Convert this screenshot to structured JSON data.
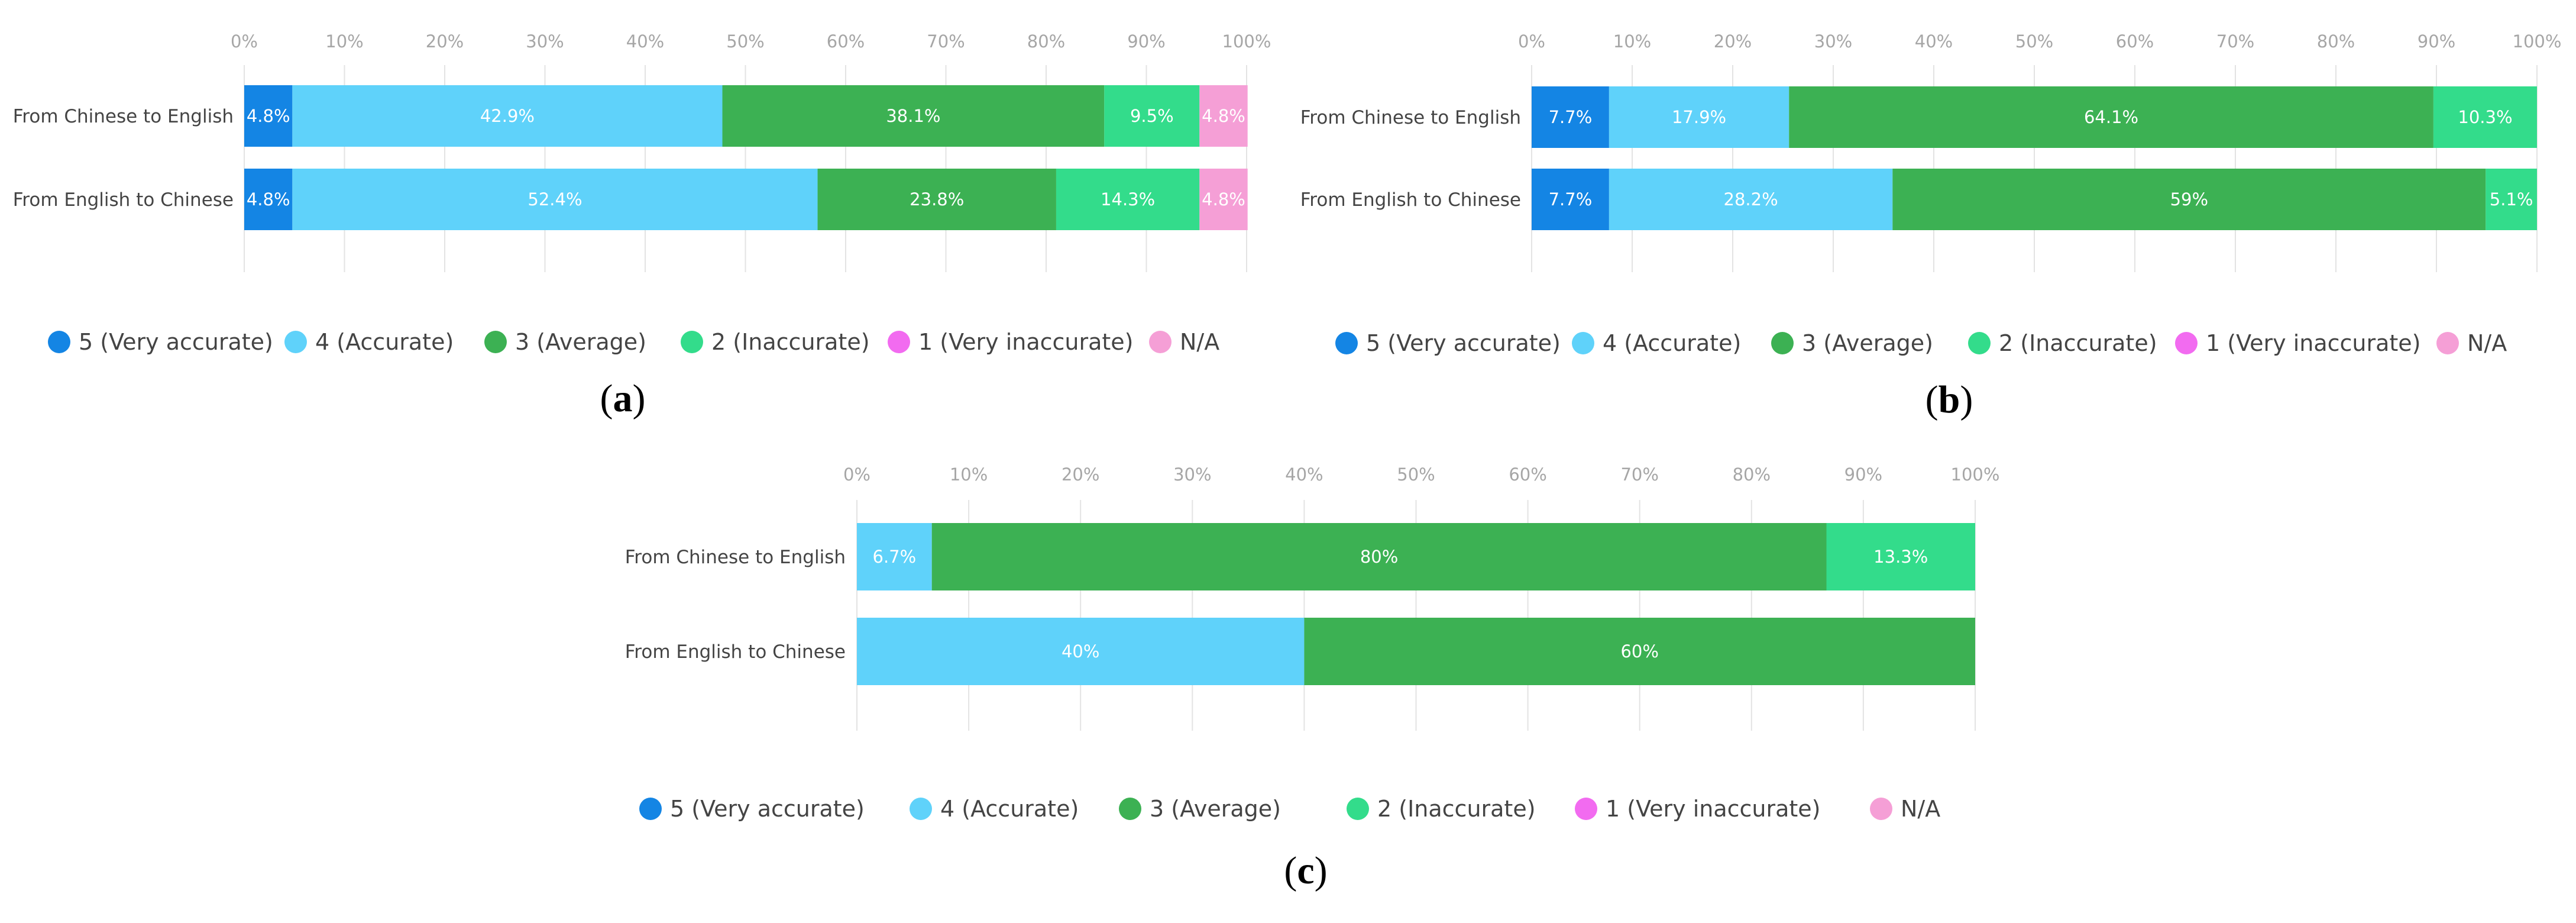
{
  "chart_data": [
    {
      "id": "a",
      "panel_label": "a",
      "type": "bar",
      "orientation": "horizontal",
      "stacked": true,
      "xlim": [
        0,
        100
      ],
      "tick_labels": [
        "0%",
        "10%",
        "20%",
        "30%",
        "40%",
        "50%",
        "60%",
        "70%",
        "80%",
        "90%",
        "100%"
      ],
      "categories": [
        "From Chinese to English",
        "From English to Chinese"
      ],
      "series": [
        {
          "name": "5 (Very accurate)",
          "values": [
            4.8,
            4.8
          ],
          "labels": [
            "4.8%",
            "4.8%"
          ]
        },
        {
          "name": "4 (Accurate)",
          "values": [
            42.9,
            52.4
          ],
          "labels": [
            "42.9%",
            "52.4%"
          ]
        },
        {
          "name": "3 (Average)",
          "values": [
            38.1,
            23.8
          ],
          "labels": [
            "38.1%",
            "23.8%"
          ]
        },
        {
          "name": "2 (Inaccurate)",
          "values": [
            9.5,
            14.3
          ],
          "labels": [
            "9.5%",
            "14.3%"
          ]
        },
        {
          "name": "1 (Very inaccurate)",
          "values": [
            0,
            0
          ],
          "labels": [
            "",
            ""
          ]
        },
        {
          "name": "N/A",
          "values": [
            4.8,
            4.8
          ],
          "labels": [
            "4.8%",
            "4.8%"
          ]
        }
      ],
      "legend_position": "bottom"
    },
    {
      "id": "b",
      "panel_label": "b",
      "type": "bar",
      "orientation": "horizontal",
      "stacked": true,
      "xlim": [
        0,
        100
      ],
      "tick_labels": [
        "0%",
        "10%",
        "20%",
        "30%",
        "40%",
        "50%",
        "60%",
        "70%",
        "80%",
        "90%",
        "100%"
      ],
      "categories": [
        "From Chinese to English",
        "From English to Chinese"
      ],
      "series": [
        {
          "name": "5 (Very accurate)",
          "values": [
            7.7,
            7.7
          ],
          "labels": [
            "7.7%",
            "7.7%"
          ]
        },
        {
          "name": "4 (Accurate)",
          "values": [
            17.9,
            28.2
          ],
          "labels": [
            "17.9%",
            "28.2%"
          ]
        },
        {
          "name": "3 (Average)",
          "values": [
            64.1,
            59
          ],
          "labels": [
            "64.1%",
            "59%"
          ]
        },
        {
          "name": "2 (Inaccurate)",
          "values": [
            10.3,
            5.1
          ],
          "labels": [
            "10.3%",
            "5.1%"
          ]
        },
        {
          "name": "1 (Very inaccurate)",
          "values": [
            0,
            0
          ],
          "labels": [
            "",
            ""
          ]
        },
        {
          "name": "N/A",
          "values": [
            0,
            0
          ],
          "labels": [
            "",
            ""
          ]
        }
      ],
      "legend_position": "bottom"
    },
    {
      "id": "c",
      "panel_label": "c",
      "type": "bar",
      "orientation": "horizontal",
      "stacked": true,
      "xlim": [
        0,
        100
      ],
      "tick_labels": [
        "0%",
        "10%",
        "20%",
        "30%",
        "40%",
        "50%",
        "60%",
        "70%",
        "80%",
        "90%",
        "100%"
      ],
      "categories": [
        "From Chinese to English",
        "From English to Chinese"
      ],
      "series": [
        {
          "name": "5 (Very accurate)",
          "values": [
            0,
            0
          ],
          "labels": [
            "",
            ""
          ]
        },
        {
          "name": "4 (Accurate)",
          "values": [
            6.7,
            40
          ],
          "labels": [
            "6.7%",
            "40%"
          ]
        },
        {
          "name": "3 (Average)",
          "values": [
            80,
            60
          ],
          "labels": [
            "80%",
            "60%"
          ]
        },
        {
          "name": "2 (Inaccurate)",
          "values": [
            13.3,
            0
          ],
          "labels": [
            "13.3%",
            ""
          ]
        },
        {
          "name": "1 (Very inaccurate)",
          "values": [
            0,
            0
          ],
          "labels": [
            "",
            ""
          ]
        },
        {
          "name": "N/A",
          "values": [
            0,
            0
          ],
          "labels": [
            "",
            ""
          ]
        }
      ],
      "legend_position": "bottom"
    }
  ],
  "colors": {
    "5 (Very accurate)": "#1485e4",
    "4 (Accurate)": "#5fd2fa",
    "3 (Average)": "#3cb153",
    "2 (Inaccurate)": "#33dc8b",
    "1 (Very inaccurate)": "#f26bf0",
    "N/A": "#f59fd6",
    "grid": "#e3e3e3",
    "tick_text": "#a6a6a6",
    "label_text": "#444444"
  }
}
